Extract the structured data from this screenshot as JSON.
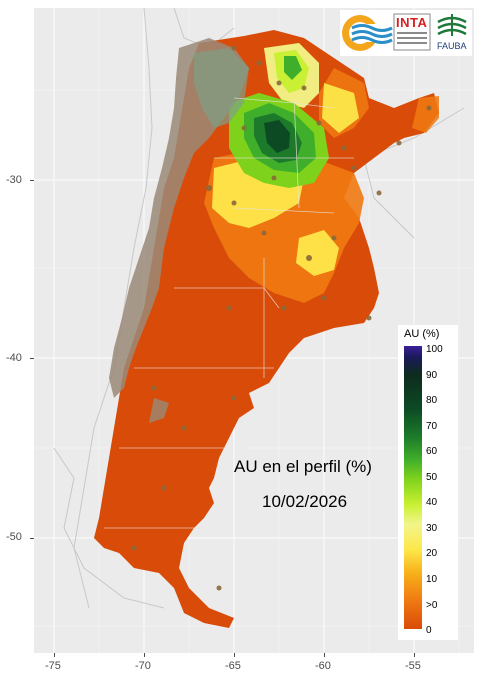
{
  "map": {
    "title_line1": "AU en el perfil (%)",
    "title_line2": "10/02/2026"
  },
  "axes": {
    "y_ticks": [
      "-30",
      "-40",
      "-50"
    ],
    "x_ticks": [
      "-75",
      "-70",
      "-65",
      "-60",
      "-55"
    ]
  },
  "legend": {
    "title": "AU (%)",
    "labels": [
      "100",
      "90",
      "80",
      "70",
      "60",
      "50",
      "40",
      "30",
      "20",
      "10",
      ">0",
      "0"
    ]
  },
  "logos": {
    "inta_text": "INTA",
    "fauba_text": "FAUBA"
  },
  "colors": {
    "dry": "#d94b08",
    "orange": "#ef7a12",
    "yellow": "#fde74a",
    "green": "#3fae2b",
    "dark_green": "#0c4a24",
    "gray_mountain": "#9a8a78",
    "panel": "#ebebeb"
  }
}
